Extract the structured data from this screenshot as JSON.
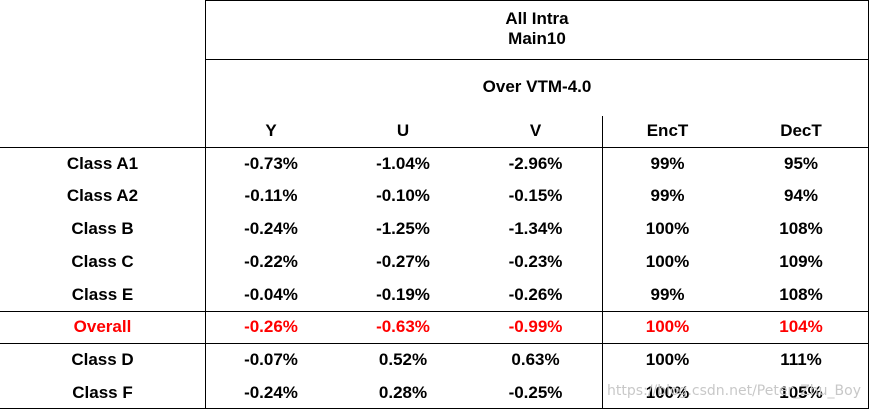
{
  "header": {
    "title_line1": "All Intra",
    "title_line2": "Main10",
    "subtitle": "Over VTM-4.0",
    "columns": [
      "Y",
      "U",
      "V",
      "EncT",
      "DecT"
    ]
  },
  "rows": [
    {
      "label": "Class A1",
      "values": [
        "-0.73%",
        "-1.04%",
        "-2.96%",
        "99%",
        "95%"
      ],
      "highlight": false
    },
    {
      "label": "Class A2",
      "values": [
        "-0.11%",
        "-0.10%",
        "-0.15%",
        "99%",
        "94%"
      ],
      "highlight": false
    },
    {
      "label": "Class B",
      "values": [
        "-0.24%",
        "-1.25%",
        "-1.34%",
        "100%",
        "108%"
      ],
      "highlight": false
    },
    {
      "label": "Class C",
      "values": [
        "-0.22%",
        "-0.27%",
        "-0.23%",
        "100%",
        "109%"
      ],
      "highlight": false
    },
    {
      "label": "Class E",
      "values": [
        "-0.04%",
        "-0.19%",
        "-0.26%",
        "99%",
        "108%"
      ],
      "highlight": false
    },
    {
      "label": "Overall",
      "values": [
        "-0.26%",
        "-0.63%",
        "-0.99%",
        "100%",
        "104%"
      ],
      "highlight": true
    },
    {
      "label": "Class D",
      "values": [
        "-0.07%",
        "0.52%",
        "0.63%",
        "100%",
        "111%"
      ],
      "highlight": false
    },
    {
      "label": "Class F",
      "values": [
        "-0.24%",
        "0.28%",
        "-0.25%",
        "100%",
        "105%"
      ],
      "highlight": false
    }
  ],
  "watermark": "https://blog.csdn.net/Peter_Zhu_Boy",
  "colors": {
    "highlight": "#ff0000",
    "text": "#000000",
    "watermark": "#c8c8c8"
  }
}
